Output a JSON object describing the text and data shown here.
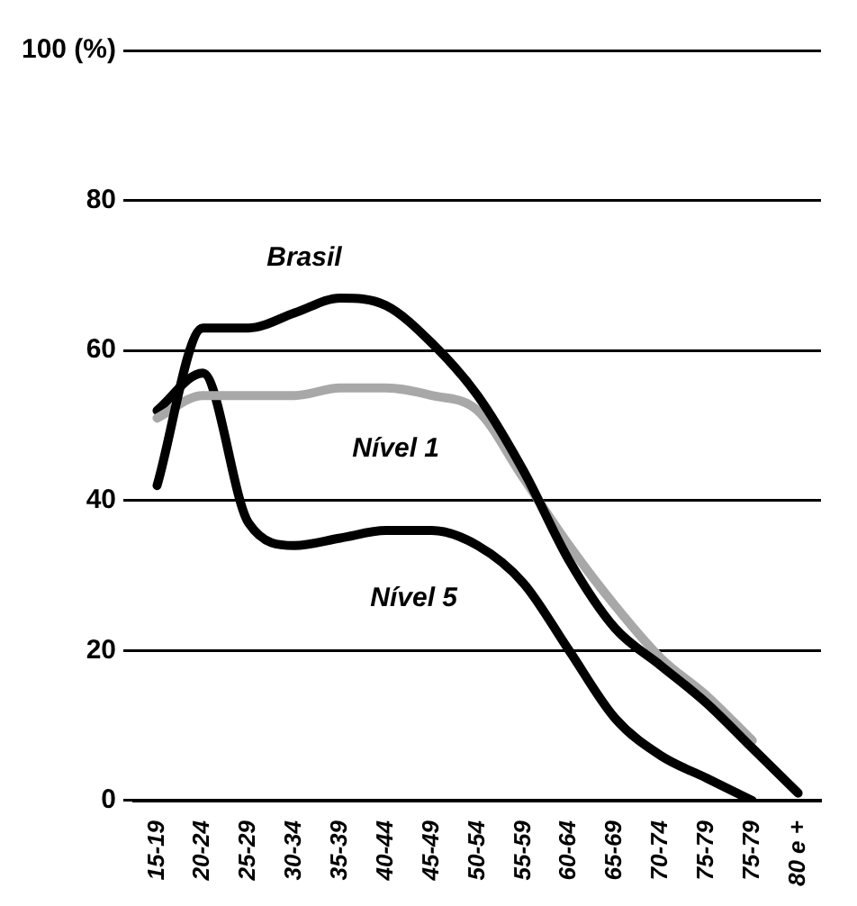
{
  "chart_data": {
    "type": "line",
    "categories": [
      "15-19",
      "20-24",
      "25-29",
      "30-34",
      "35-39",
      "40-44",
      "45-49",
      "50-54",
      "55-59",
      "60-64",
      "65-69",
      "70-74",
      "75-79",
      "75-79",
      "80 e +"
    ],
    "series": [
      {
        "name": "Brasil",
        "color": "#000000",
        "values": [
          42,
          63,
          63,
          65,
          67,
          66,
          61,
          54,
          44,
          32,
          23,
          18,
          13,
          7,
          1
        ]
      },
      {
        "name": "Nível 1",
        "color": "#a8a8a8",
        "values": [
          51,
          54,
          54,
          54,
          55,
          55,
          54,
          52,
          43,
          34,
          26,
          19,
          14,
          8,
          null
        ]
      },
      {
        "name": "Nível 5",
        "color": "#000000",
        "values": [
          52,
          57,
          37,
          34,
          35,
          36,
          36,
          34,
          29,
          20,
          11,
          6,
          3,
          0,
          null
        ]
      }
    ],
    "ylim": [
      0,
      100
    ],
    "yticks": [
      0,
      20,
      40,
      60,
      80,
      {
        "value": 100,
        "label": "100 (%)"
      }
    ],
    "grid": "y",
    "legend": false,
    "marker": "none",
    "line_style": "solid"
  }
}
